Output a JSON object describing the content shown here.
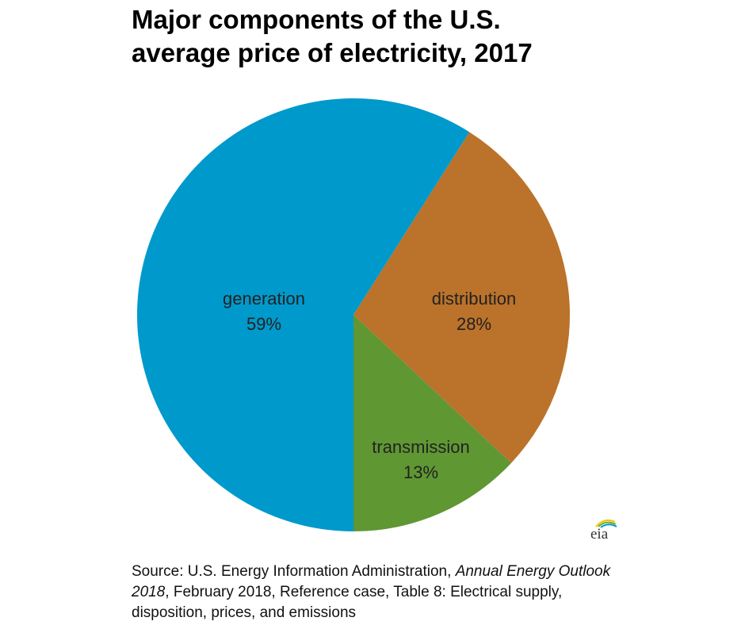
{
  "chart_data": {
    "type": "pie",
    "title": "Major components of the U.S.\naverage price of electricity, 2017",
    "slices": [
      {
        "label": "generation",
        "value": 59,
        "value_label": "59%",
        "color": "#0099cc"
      },
      {
        "label": "distribution",
        "value": 28,
        "value_label": "28%",
        "color": "#bb722a"
      },
      {
        "label": "transmission",
        "value": 13,
        "value_label": "13%",
        "color": "#5f9733"
      }
    ],
    "start": "bottom",
    "direction": "clockwise"
  },
  "source": {
    "prefix": "Source: U.S. Energy Information Administration, ",
    "italic": "Annual Energy Outlook 2018",
    "suffix": ", February 2018, Reference case, Table 8: Electrical supply, disposition, prices, and emissions"
  },
  "logo": {
    "text": "eia"
  }
}
